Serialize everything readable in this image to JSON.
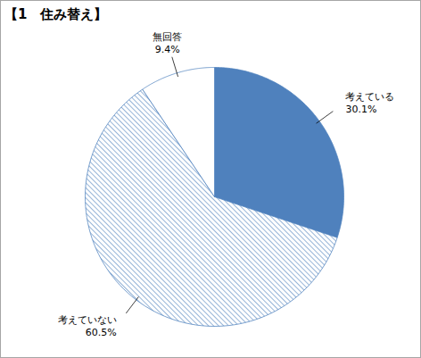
{
  "chart_data": {
    "type": "pie",
    "title": "【1　住み替え】",
    "categories": [
      "考えている",
      "考えていない",
      "無回答"
    ],
    "values": [
      30.1,
      60.5,
      9.4
    ],
    "value_labels": [
      "30.1%",
      "60.5%",
      "9.4%"
    ],
    "colors": [
      "#4f81bd",
      "#4f81bd",
      "#ffffff"
    ],
    "data_labels": true
  }
}
